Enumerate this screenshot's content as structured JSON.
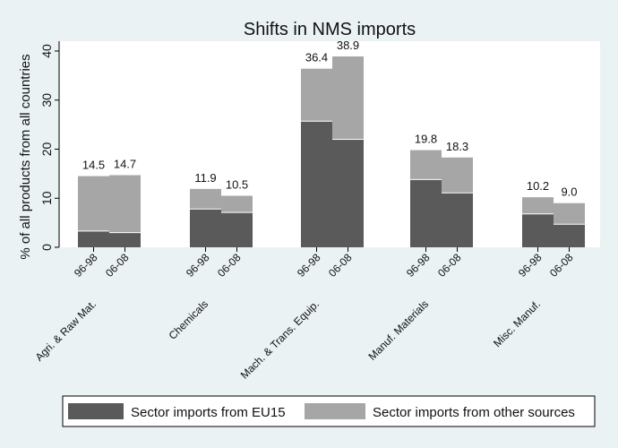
{
  "chart_data": {
    "type": "bar",
    "title": "Shifts in NMS imports",
    "ylabel": "% of all products from all countries",
    "ylim": [
      0,
      42
    ],
    "yticks": [
      0,
      10,
      20,
      30,
      40
    ],
    "grid": false,
    "legend_position": "bottom",
    "groups": [
      {
        "label": "Agri. & Raw Mat.",
        "periods": [
          "96-98",
          "06-08"
        ],
        "eu15": [
          3.3,
          3.0
        ],
        "other": [
          11.2,
          11.7
        ],
        "totals": [
          "14.5",
          "14.7"
        ]
      },
      {
        "label": "Chemicals",
        "periods": [
          "96-98",
          "06-08"
        ],
        "eu15": [
          7.8,
          7.1
        ],
        "other": [
          4.1,
          3.4
        ],
        "totals": [
          "11.9",
          "10.5"
        ]
      },
      {
        "label": "Mach. & Trans. Equip.",
        "periods": [
          "96-98",
          "06-08"
        ],
        "eu15": [
          25.7,
          22.0
        ],
        "other": [
          10.7,
          16.9
        ],
        "totals": [
          "36.4",
          "38.9"
        ]
      },
      {
        "label": "Manuf. Materials",
        "periods": [
          "96-98",
          "06-08"
        ],
        "eu15": [
          13.8,
          11.1
        ],
        "other": [
          6.0,
          7.2
        ],
        "totals": [
          "19.8",
          "18.3"
        ]
      },
      {
        "label": "Misc. Manuf.",
        "periods": [
          "96-98",
          "06-08"
        ],
        "eu15": [
          6.8,
          4.7
        ],
        "other": [
          3.4,
          4.3
        ],
        "totals": [
          "10.2",
          "9.0"
        ]
      }
    ],
    "series": [
      {
        "name": "Sector imports from EU15",
        "color": "#5a5a5a"
      },
      {
        "name": "Sector imports from other sources",
        "color": "#a6a6a6"
      }
    ]
  }
}
